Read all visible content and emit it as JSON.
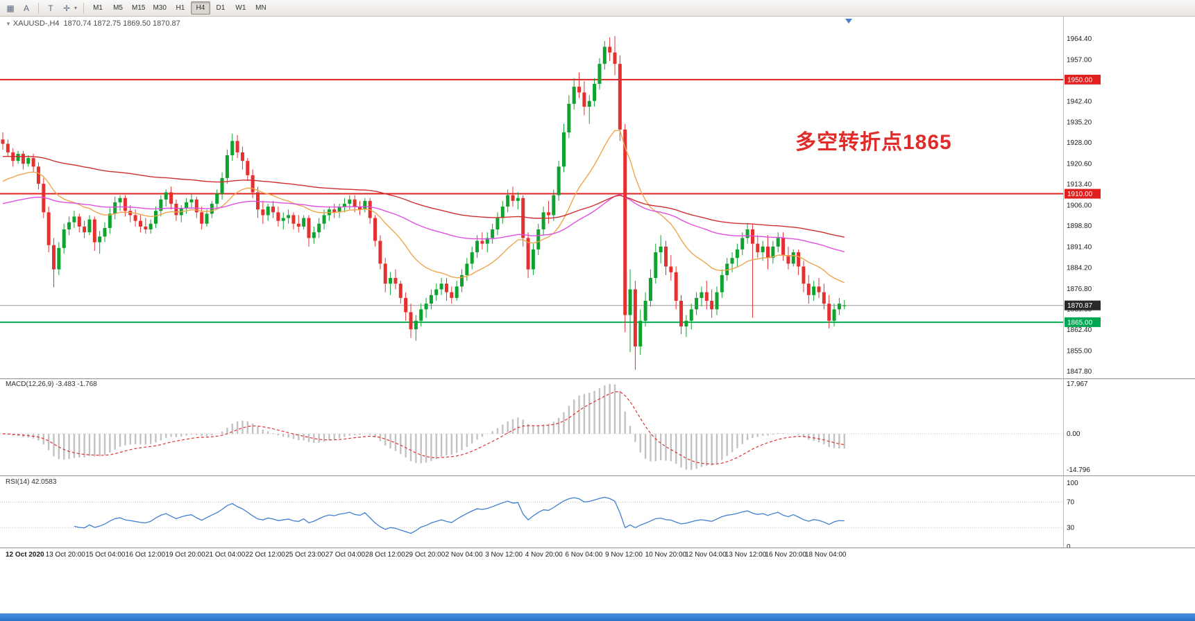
{
  "toolbar": {
    "tools": [
      {
        "name": "chart-window-icon",
        "glyph": "▦",
        "arrow": false
      },
      {
        "name": "cursor-tool-icon",
        "glyph": "A",
        "arrow": false
      },
      {
        "name": "text-tool-icon",
        "glyph": "T",
        "arrow": false
      },
      {
        "name": "crosshair-tool-icon",
        "glyph": "✛",
        "arrow": true
      }
    ],
    "timeframes": [
      "M1",
      "M5",
      "M15",
      "M30",
      "H1",
      "H4",
      "D1",
      "W1",
      "MN"
    ],
    "active_timeframe": "H4"
  },
  "chart": {
    "header": {
      "symbol": "XAUUSD-,H4",
      "ohlc": "1870.74 1872.75 1869.50 1870.87"
    },
    "annotation": {
      "text": "多空转折点1865",
      "color": "#e02b2b"
    }
  },
  "chart_data": {
    "type": "candlestick",
    "symbol": "XAUUSD-",
    "timeframe": "H4",
    "title": "XAUUSD-,H4 1870.74 1872.75 1869.50 1870.87",
    "price_axis": {
      "min": 1845.3,
      "max": 1970.6,
      "ticks": [
        "1964.40",
        "1957.00",
        "1950.00",
        "1942.40",
        "1935.20",
        "1928.00",
        "1920.60",
        "1913.40",
        "1906.00",
        "1898.80",
        "1891.40",
        "1884.20",
        "1876.80",
        "1869.60",
        "1862.40",
        "1855.00",
        "1847.80"
      ],
      "badges": [
        {
          "text": "1950.00",
          "price": 1950.0,
          "bg": "#e01f1f"
        },
        {
          "text": "1910.00",
          "price": 1910.0,
          "bg": "#e01f1f"
        },
        {
          "text": "1870.87",
          "price": 1870.87,
          "bg": "#2a2a2a"
        },
        {
          "text": "1865.00",
          "price": 1865.0,
          "bg": "#00a651"
        }
      ]
    },
    "hlines": [
      {
        "price": 1950.0,
        "color": "#e01f1f",
        "width": 2
      },
      {
        "price": 1910.0,
        "color": "#e01f1f",
        "width": 2
      },
      {
        "price": 1870.87,
        "color": "#9a9a9a",
        "width": 1
      },
      {
        "price": 1865.0,
        "color": "#00b050",
        "width": 2
      }
    ],
    "annotations": [
      {
        "text": "多空转折点1865",
        "color": "#e02b2b",
        "near_price": 1930
      }
    ],
    "moving_averages": [
      {
        "name": "ma-fast-orange",
        "period": 21,
        "seed": 1913,
        "color": "#eda54b"
      },
      {
        "name": "ma-mid-magenta",
        "period": 80,
        "seed": 1906,
        "color": "#e04fe0"
      },
      {
        "name": "ma-slow-red",
        "period": 130,
        "seed": 1923,
        "color": "#cf2e2e"
      }
    ],
    "time_labels": [
      "12 Oct 2020",
      "13 Oct 20:00",
      "15 Oct 04:00",
      "16 Oct 12:00",
      "19 Oct 20:00",
      "21 Oct 04:00",
      "22 Oct 12:00",
      "25 Oct 23:00",
      "27 Oct 04:00",
      "28 Oct 12:00",
      "29 Oct 20:00",
      "2 Nov 04:00",
      "3 Nov 12:00",
      "4 Nov 20:00",
      "6 Nov 04:00",
      "9 Nov 12:00",
      "10 Nov 20:00",
      "12 Nov 04:00",
      "13 Nov 12:00",
      "16 Nov 20:00",
      "18 Nov 04:00"
    ],
    "candles": [
      [
        1929.0,
        1931.5,
        1925.5,
        1927.5
      ],
      [
        1927.5,
        1929.0,
        1923.0,
        1924.5
      ],
      [
        1924.5,
        1926.0,
        1919.5,
        1921.5
      ],
      [
        1921.5,
        1925.0,
        1920.5,
        1924.0
      ],
      [
        1924.0,
        1925.0,
        1918.5,
        1920.5
      ],
      [
        1920.5,
        1923.5,
        1919.5,
        1922.5
      ],
      [
        1922.5,
        1924.0,
        1917.5,
        1919.5
      ],
      [
        1919.5,
        1921.0,
        1911.5,
        1913.5
      ],
      [
        1913.5,
        1915.5,
        1901.5,
        1903.5
      ],
      [
        1903.5,
        1905.5,
        1889.5,
        1892.0
      ],
      [
        1892.0,
        1894.5,
        1877.2,
        1883.5
      ],
      [
        1883.5,
        1893.0,
        1881.5,
        1891.0
      ],
      [
        1891.0,
        1899.5,
        1889.0,
        1897.5
      ],
      [
        1897.5,
        1902.0,
        1895.5,
        1900.0
      ],
      [
        1900.0,
        1904.0,
        1898.0,
        1902.0
      ],
      [
        1902.0,
        1903.0,
        1896.5,
        1898.5
      ],
      [
        1898.5,
        1900.5,
        1894.5,
        1896.5
      ],
      [
        1896.5,
        1902.5,
        1895.5,
        1901.0
      ],
      [
        1901.0,
        1902.0,
        1890.0,
        1893.0
      ],
      [
        1893.0,
        1897.0,
        1889.0,
        1895.0
      ],
      [
        1895.0,
        1900.0,
        1893.0,
        1898.0
      ],
      [
        1898.0,
        1905.0,
        1896.0,
        1903.0
      ],
      [
        1903.0,
        1909.0,
        1901.0,
        1907.0
      ],
      [
        1907.0,
        1909.5,
        1904.0,
        1908.5
      ],
      [
        1908.5,
        1909.5,
        1902.0,
        1904.0
      ],
      [
        1904.0,
        1906.0,
        1900.0,
        1902.5
      ],
      [
        1902.5,
        1904.5,
        1898.5,
        1900.5
      ],
      [
        1900.5,
        1902.5,
        1896.5,
        1898.5
      ],
      [
        1898.5,
        1901.5,
        1896.0,
        1897.5
      ],
      [
        1897.5,
        1901.0,
        1896.0,
        1899.5
      ],
      [
        1899.5,
        1905.5,
        1898.0,
        1904.0
      ],
      [
        1904.0,
        1909.5,
        1902.0,
        1908.0
      ],
      [
        1908.0,
        1911.5,
        1905.5,
        1910.5
      ],
      [
        1910.5,
        1912.5,
        1904.5,
        1906.5
      ],
      [
        1906.5,
        1908.0,
        1900.5,
        1902.5
      ],
      [
        1902.5,
        1906.0,
        1900.0,
        1905.0
      ],
      [
        1905.0,
        1908.5,
        1903.0,
        1907.0
      ],
      [
        1907.0,
        1910.0,
        1905.0,
        1908.0
      ],
      [
        1908.0,
        1909.0,
        1901.5,
        1903.5
      ],
      [
        1903.5,
        1905.5,
        1897.5,
        1899.5
      ],
      [
        1899.5,
        1904.5,
        1898.5,
        1903.0
      ],
      [
        1903.0,
        1907.5,
        1901.5,
        1906.5
      ],
      [
        1906.5,
        1911.5,
        1904.5,
        1910.0
      ],
      [
        1910.0,
        1917.5,
        1908.0,
        1915.5
      ],
      [
        1915.5,
        1925.5,
        1913.5,
        1923.5
      ],
      [
        1923.5,
        1931.0,
        1921.5,
        1928.5
      ],
      [
        1928.5,
        1930.5,
        1922.5,
        1924.5
      ],
      [
        1924.5,
        1926.5,
        1918.5,
        1921.5
      ],
      [
        1921.5,
        1922.5,
        1914.5,
        1916.5
      ],
      [
        1916.5,
        1918.5,
        1908.5,
        1910.5
      ],
      [
        1910.5,
        1912.5,
        1901.5,
        1904.5
      ],
      [
        1904.5,
        1907.5,
        1899.5,
        1902.5
      ],
      [
        1902.5,
        1906.5,
        1900.5,
        1905.5
      ],
      [
        1905.5,
        1907.5,
        1901.5,
        1903.5
      ],
      [
        1903.5,
        1905.5,
        1898.5,
        1900.5
      ],
      [
        1900.5,
        1903.5,
        1897.5,
        1901.5
      ],
      [
        1901.5,
        1904.5,
        1899.5,
        1902.5
      ],
      [
        1902.5,
        1903.5,
        1897.5,
        1899.5
      ],
      [
        1899.5,
        1902.5,
        1896.5,
        1898.5
      ],
      [
        1898.5,
        1902.5,
        1897.5,
        1901.5
      ],
      [
        1901.5,
        1902.5,
        1891.5,
        1894.5
      ],
      [
        1894.5,
        1898.5,
        1892.5,
        1896.5
      ],
      [
        1896.5,
        1901.5,
        1894.5,
        1899.5
      ],
      [
        1899.5,
        1904.5,
        1897.5,
        1902.5
      ],
      [
        1902.5,
        1905.5,
        1900.5,
        1904.5
      ],
      [
        1904.5,
        1906.5,
        1901.5,
        1903.5
      ],
      [
        1903.5,
        1906.5,
        1901.5,
        1905.5
      ],
      [
        1905.5,
        1908.5,
        1903.5,
        1906.5
      ],
      [
        1906.5,
        1909.5,
        1904.5,
        1908.0
      ],
      [
        1908.0,
        1909.5,
        1903.5,
        1905.5
      ],
      [
        1905.5,
        1907.5,
        1902.5,
        1904.5
      ],
      [
        1904.5,
        1908.5,
        1903.5,
        1907.5
      ],
      [
        1907.5,
        1908.5,
        1899.5,
        1901.5
      ],
      [
        1901.5,
        1902.5,
        1891.5,
        1893.5
      ],
      [
        1893.5,
        1895.5,
        1883.5,
        1885.5
      ],
      [
        1885.5,
        1887.5,
        1875.5,
        1878.5
      ],
      [
        1878.5,
        1882.5,
        1874.5,
        1880.5
      ],
      [
        1880.5,
        1883.5,
        1876.5,
        1878.5
      ],
      [
        1878.5,
        1879.5,
        1871.5,
        1873.5
      ],
      [
        1873.5,
        1875.5,
        1865.5,
        1868.5
      ],
      [
        1868.5,
        1871.5,
        1859.5,
        1862.5
      ],
      [
        1862.5,
        1867.5,
        1858.5,
        1865.5
      ],
      [
        1865.5,
        1871.5,
        1863.5,
        1869.5
      ],
      [
        1869.5,
        1873.5,
        1866.5,
        1871.5
      ],
      [
        1871.5,
        1876.5,
        1869.5,
        1874.5
      ],
      [
        1874.5,
        1878.5,
        1872.5,
        1876.5
      ],
      [
        1876.5,
        1880.5,
        1874.5,
        1878.5
      ],
      [
        1878.5,
        1880.5,
        1872.5,
        1875.5
      ],
      [
        1875.5,
        1877.5,
        1871.5,
        1873.5
      ],
      [
        1873.5,
        1879.5,
        1872.5,
        1877.5
      ],
      [
        1877.5,
        1883.5,
        1875.5,
        1881.5
      ],
      [
        1881.5,
        1887.5,
        1879.5,
        1885.5
      ],
      [
        1885.5,
        1891.5,
        1883.5,
        1889.5
      ],
      [
        1889.5,
        1895.5,
        1887.5,
        1893.5
      ],
      [
        1893.5,
        1896.5,
        1890.5,
        1892.5
      ],
      [
        1892.5,
        1896.5,
        1889.5,
        1894.5
      ],
      [
        1894.5,
        1899.5,
        1892.5,
        1897.5
      ],
      [
        1897.5,
        1903.5,
        1895.5,
        1901.5
      ],
      [
        1901.5,
        1907.5,
        1899.5,
        1905.5
      ],
      [
        1905.5,
        1911.5,
        1903.5,
        1909.5
      ],
      [
        1909.5,
        1912.5,
        1905.5,
        1907.5
      ],
      [
        1907.5,
        1910.5,
        1904.5,
        1908.5
      ],
      [
        1908.5,
        1909.5,
        1891.5,
        1894.5
      ],
      [
        1894.5,
        1896.5,
        1880.5,
        1883.5
      ],
      [
        1883.5,
        1892.5,
        1881.5,
        1890.5
      ],
      [
        1890.5,
        1899.5,
        1888.5,
        1897.5
      ],
      [
        1897.5,
        1905.5,
        1895.5,
        1903.5
      ],
      [
        1903.5,
        1907.5,
        1899.5,
        1902.5
      ],
      [
        1902.5,
        1911.5,
        1900.5,
        1909.5
      ],
      [
        1909.5,
        1921.5,
        1907.5,
        1919.5
      ],
      [
        1919.5,
        1934.5,
        1917.5,
        1931.5
      ],
      [
        1931.5,
        1944.5,
        1929.5,
        1941.5
      ],
      [
        1941.5,
        1950.5,
        1939.5,
        1947.5
      ],
      [
        1947.5,
        1952.5,
        1943.5,
        1945.5
      ],
      [
        1945.5,
        1949.5,
        1937.5,
        1940.5
      ],
      [
        1940.5,
        1944.5,
        1934.5,
        1942.5
      ],
      [
        1942.5,
        1950.5,
        1940.5,
        1948.5
      ],
      [
        1948.5,
        1957.5,
        1946.5,
        1955.5
      ],
      [
        1955.5,
        1963.5,
        1953.5,
        1961.5
      ],
      [
        1961.5,
        1964.8,
        1956.5,
        1959.5
      ],
      [
        1959.5,
        1965.3,
        1951.5,
        1955.5
      ],
      [
        1955.5,
        1958.5,
        1928.5,
        1932.5
      ],
      [
        1932.5,
        1934.5,
        1861.5,
        1867.5
      ],
      [
        1867.5,
        1883.5,
        1854.5,
        1876.5
      ],
      [
        1876.5,
        1879.5,
        1848.3,
        1856.5
      ],
      [
        1856.5,
        1869.5,
        1853.5,
        1865.5
      ],
      [
        1865.5,
        1875.5,
        1863.5,
        1872.5
      ],
      [
        1872.5,
        1883.5,
        1870.5,
        1880.5
      ],
      [
        1880.5,
        1892.5,
        1878.5,
        1889.5
      ],
      [
        1889.5,
        1895.5,
        1885.5,
        1891.5
      ],
      [
        1891.5,
        1893.5,
        1881.5,
        1884.5
      ],
      [
        1884.5,
        1888.5,
        1879.5,
        1882.5
      ],
      [
        1882.5,
        1884.5,
        1869.5,
        1872.5
      ],
      [
        1872.5,
        1874.5,
        1860.8,
        1863.5
      ],
      [
        1863.5,
        1867.5,
        1859.8,
        1865.5
      ],
      [
        1865.5,
        1871.5,
        1862.5,
        1869.5
      ],
      [
        1869.5,
        1875.5,
        1867.5,
        1873.5
      ],
      [
        1873.5,
        1877.5,
        1870.5,
        1875.5
      ],
      [
        1875.5,
        1879.5,
        1869.5,
        1872.5
      ],
      [
        1872.5,
        1876.5,
        1866.5,
        1869.5
      ],
      [
        1869.5,
        1877.5,
        1867.5,
        1875.5
      ],
      [
        1875.5,
        1883.5,
        1873.5,
        1881.5
      ],
      [
        1881.5,
        1887.5,
        1879.5,
        1885.5
      ],
      [
        1885.5,
        1889.5,
        1882.5,
        1887.5
      ],
      [
        1887.5,
        1892.5,
        1884.5,
        1890.5
      ],
      [
        1890.5,
        1896.5,
        1888.5,
        1894.5
      ],
      [
        1894.5,
        1899.8,
        1892.5,
        1897.5
      ],
      [
        1897.5,
        1899.5,
        1866.5,
        1892.5
      ],
      [
        1892.5,
        1895.5,
        1887.5,
        1889.5
      ],
      [
        1889.5,
        1893.5,
        1886.5,
        1891.5
      ],
      [
        1891.5,
        1895.5,
        1883.5,
        1887.5
      ],
      [
        1887.5,
        1893.5,
        1885.5,
        1891.5
      ],
      [
        1891.5,
        1896.5,
        1889.5,
        1894.5
      ],
      [
        1894.5,
        1896.5,
        1886.5,
        1888.5
      ],
      [
        1888.5,
        1891.5,
        1883.5,
        1885.5
      ],
      [
        1885.5,
        1890.5,
        1884.5,
        1889.5
      ],
      [
        1889.5,
        1890.5,
        1881.5,
        1884.5
      ],
      [
        1884.5,
        1886.5,
        1875.5,
        1878.5
      ],
      [
        1878.5,
        1881.5,
        1871.5,
        1874.5
      ],
      [
        1874.5,
        1879.5,
        1872.5,
        1877.5
      ],
      [
        1877.5,
        1880.5,
        1873.5,
        1875.5
      ],
      [
        1875.5,
        1878.5,
        1869.5,
        1871.5
      ],
      [
        1871.5,
        1874.5,
        1862.8,
        1865.5
      ],
      [
        1865.5,
        1871.5,
        1863.5,
        1869.5
      ],
      [
        1869.5,
        1873.5,
        1867.5,
        1871.5
      ],
      [
        1870.74,
        1872.75,
        1869.5,
        1870.87
      ]
    ],
    "indicators": {
      "macd": {
        "params": "12,26,9",
        "last_main": -3.483,
        "last_signal": -1.768,
        "axis_max": 17.967,
        "axis_min": -14.796
      },
      "rsi": {
        "period": 14,
        "last": 42.0583,
        "levels": [
          70,
          30
        ],
        "axis": [
          100,
          70,
          30,
          0
        ]
      }
    }
  },
  "macd": {
    "label": "MACD(12,26,9) -3.483 -1.768",
    "axis": {
      "max": "17.967",
      "zero": "0.00",
      "min": "-14.796"
    }
  },
  "rsi": {
    "label": "RSI(14) 42.0583",
    "axis": [
      "100",
      "70",
      "30",
      "0"
    ]
  },
  "time_axis": {
    "labels": [
      "12 Oct 2020",
      "13 Oct 20:00",
      "15 Oct 04:00",
      "16 Oct 12:00",
      "19 Oct 20:00",
      "21 Oct 04:00",
      "22 Oct 12:00",
      "25 Oct 23:00",
      "27 Oct 04:00",
      "28 Oct 12:00",
      "29 Oct 20:00",
      "2 Nov 04:00",
      "3 Nov 12:00",
      "4 Nov 20:00",
      "6 Nov 04:00",
      "9 Nov 12:00",
      "10 Nov 20:00",
      "12 Nov 04:00",
      "13 Nov 12:00",
      "16 Nov 20:00",
      "18 Nov 04:00"
    ]
  },
  "colors": {
    "candle_up": "#0ea32e",
    "candle_down": "#e53030",
    "macd_hist": "#c2c2c2",
    "macd_signal": "#e03030",
    "rsi_line": "#3f7fd0",
    "level_line": "#c0c0c0",
    "axis_text": "#1a1a1a",
    "shift_marker": "#4a7fd0",
    "bottom_strip": "#2e7cd6"
  }
}
